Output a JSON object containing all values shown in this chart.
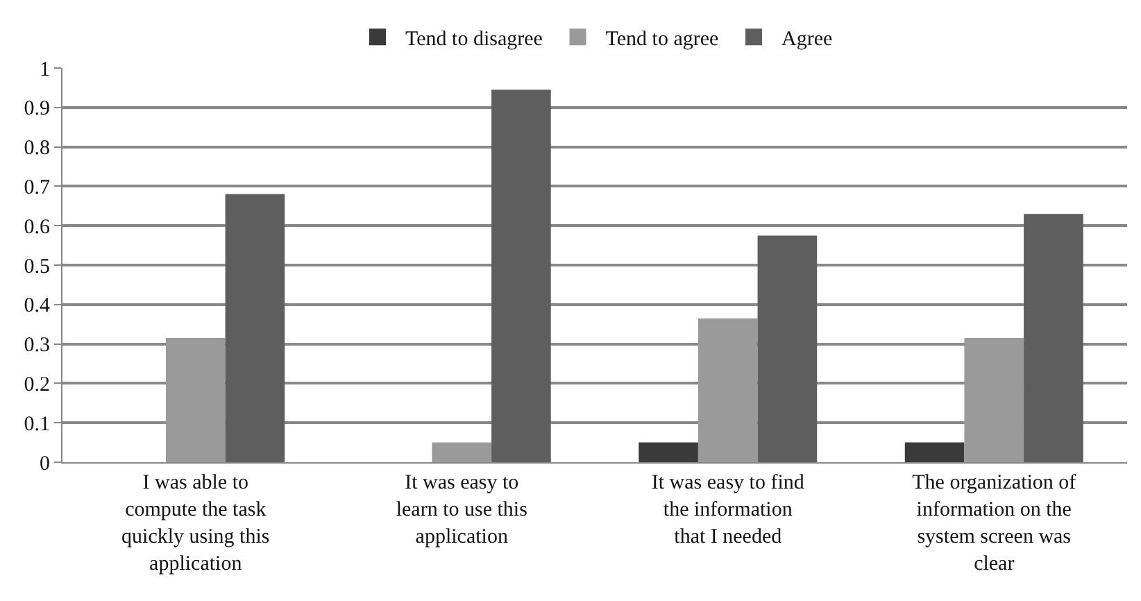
{
  "chart_data": {
    "type": "bar",
    "categories": [
      "I was able to compute the task quickly using this application",
      "It was easy to learn to use this application",
      "It was easy to find the information that I needed",
      "The organization of information on the system screen was clear"
    ],
    "series": [
      {
        "name": "Tend to disagree",
        "color": "#3a3a3a",
        "values": [
          null,
          null,
          0.05,
          0.05
        ]
      },
      {
        "name": "Tend to agree",
        "color": "#9a9a9a",
        "values": [
          0.315,
          0.05,
          0.365,
          0.315
        ]
      },
      {
        "name": "Agree",
        "color": "#5e5e5e",
        "values": [
          0.68,
          0.945,
          0.575,
          0.63
        ]
      }
    ],
    "ylim": [
      0,
      1
    ],
    "yticks": [
      0,
      0.1,
      0.2,
      0.3,
      0.4,
      0.5,
      0.6,
      0.7,
      0.8,
      0.9,
      1
    ],
    "grid": "y",
    "legend": "top"
  }
}
